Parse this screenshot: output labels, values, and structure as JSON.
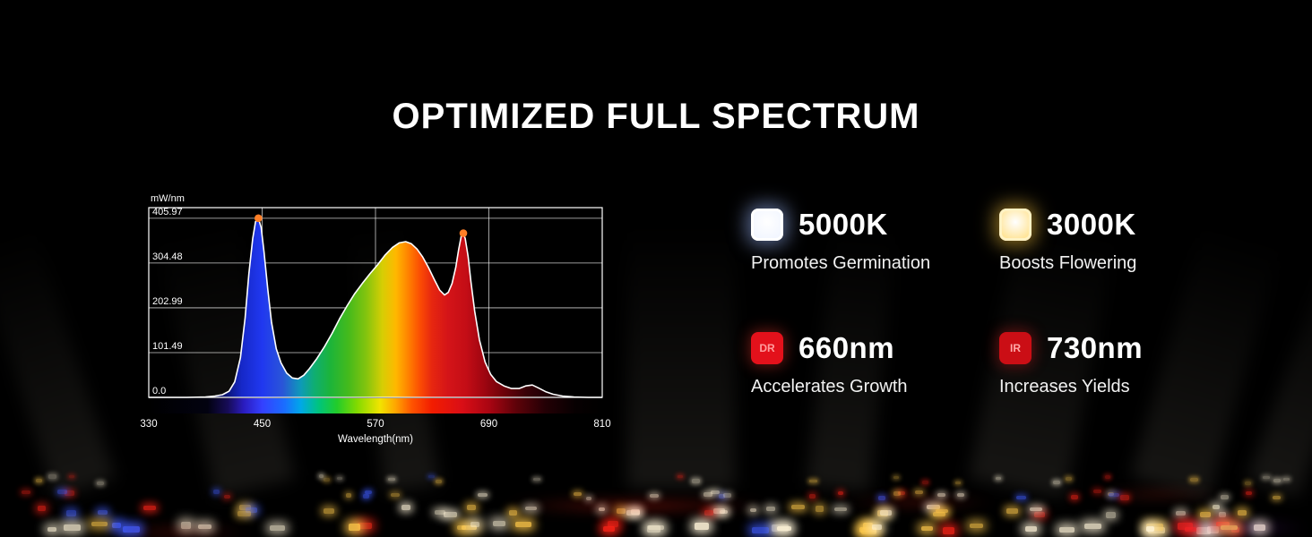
{
  "title": "OPTIMIZED FULL SPECTRUM",
  "chart_data": {
    "type": "area",
    "xlabel": "Wavelength(nm)",
    "ylabel": "mW/nm",
    "xlim": [
      330,
      810
    ],
    "ylim": [
      0,
      430
    ],
    "x_ticks": [
      {
        "label": "330",
        "v": 330
      },
      {
        "label": "450",
        "v": 450
      },
      {
        "label": "570",
        "v": 570
      },
      {
        "label": "690",
        "v": 690
      },
      {
        "label": "810",
        "v": 810
      }
    ],
    "y_ticks": [
      {
        "label": "0.0",
        "v": 0
      },
      {
        "label": "101.49",
        "v": 101.49
      },
      {
        "label": "202.99",
        "v": 202.99
      },
      {
        "label": "304.48",
        "v": 304.48
      },
      {
        "label": "405.97",
        "v": 405.97
      }
    ],
    "x": [
      330,
      370,
      390,
      400,
      408,
      415,
      421,
      427,
      432,
      436,
      440,
      443,
      446,
      449,
      452,
      456,
      460,
      465,
      470,
      476,
      482,
      488,
      494,
      500,
      508,
      516,
      524,
      532,
      540,
      548,
      556,
      564,
      572,
      580,
      588,
      595,
      602,
      608,
      614,
      620,
      626,
      632,
      638,
      643,
      647,
      651,
      655,
      658,
      661,
      663,
      665,
      668,
      671,
      675,
      680,
      686,
      692,
      698,
      706,
      714,
      722,
      729,
      736,
      742,
      750,
      758,
      768,
      780,
      795,
      810
    ],
    "y": [
      0,
      0,
      1,
      3,
      6,
      14,
      35,
      90,
      180,
      280,
      360,
      398,
      406,
      385,
      330,
      245,
      170,
      110,
      78,
      55,
      44,
      42,
      50,
      65,
      88,
      115,
      145,
      178,
      208,
      235,
      258,
      280,
      300,
      322,
      340,
      350,
      353,
      348,
      336,
      318,
      295,
      268,
      243,
      232,
      238,
      258,
      295,
      335,
      368,
      372,
      360,
      320,
      262,
      195,
      130,
      80,
      52,
      36,
      26,
      20,
      20,
      26,
      28,
      22,
      13,
      7,
      3,
      1,
      0,
      0
    ],
    "peaks": [
      {
        "x": 446,
        "y": 406
      },
      {
        "x": 663,
        "y": 372
      }
    ],
    "peak_marker_color": "#ff7f27",
    "line_color": "#ffffff",
    "fill_gradient": [
      {
        "o": 0.0,
        "c": "#030318"
      },
      {
        "o": 0.17,
        "c": "#0b1470"
      },
      {
        "o": 0.205,
        "c": "#1628c8"
      },
      {
        "o": 0.25,
        "c": "#2038f0"
      },
      {
        "o": 0.295,
        "c": "#2a55d8"
      },
      {
        "o": 0.335,
        "c": "#0e9ab8"
      },
      {
        "o": 0.365,
        "c": "#0fae72"
      },
      {
        "o": 0.4,
        "c": "#1cb43a"
      },
      {
        "o": 0.44,
        "c": "#44ba1c"
      },
      {
        "o": 0.48,
        "c": "#84c40e"
      },
      {
        "o": 0.515,
        "c": "#d6ce04"
      },
      {
        "o": 0.545,
        "c": "#ffb800"
      },
      {
        "o": 0.575,
        "c": "#ff7c00"
      },
      {
        "o": 0.6,
        "c": "#fa4a04"
      },
      {
        "o": 0.625,
        "c": "#e62610"
      },
      {
        "o": 0.66,
        "c": "#d41418"
      },
      {
        "o": 0.7,
        "c": "#c40d16"
      },
      {
        "o": 0.74,
        "c": "#9e0510"
      },
      {
        "o": 0.785,
        "c": "#6a020a"
      },
      {
        "o": 0.835,
        "c": "#360107"
      },
      {
        "o": 0.9,
        "c": "#120003"
      },
      {
        "o": 1.0,
        "c": "#000000"
      }
    ],
    "colorbar_gradient": [
      {
        "o": 0,
        "c": "#000000"
      },
      {
        "o": 0.13,
        "c": "#020210"
      },
      {
        "o": 0.175,
        "c": "#170c58"
      },
      {
        "o": 0.21,
        "c": "#2a1cc0"
      },
      {
        "o": 0.25,
        "c": "#3440ff"
      },
      {
        "o": 0.3,
        "c": "#1a6eff"
      },
      {
        "o": 0.335,
        "c": "#00a8e8"
      },
      {
        "o": 0.375,
        "c": "#00c47c"
      },
      {
        "o": 0.415,
        "c": "#22cc2a"
      },
      {
        "o": 0.46,
        "c": "#84da00"
      },
      {
        "o": 0.51,
        "c": "#f2e400"
      },
      {
        "o": 0.545,
        "c": "#ffa400"
      },
      {
        "o": 0.58,
        "c": "#ff5400"
      },
      {
        "o": 0.625,
        "c": "#f21c00"
      },
      {
        "o": 0.69,
        "c": "#da0e16"
      },
      {
        "o": 0.75,
        "c": "#aa0512"
      },
      {
        "o": 0.81,
        "c": "#5e0209"
      },
      {
        "o": 0.875,
        "c": "#230005"
      },
      {
        "o": 0.94,
        "c": "#070001"
      },
      {
        "o": 1,
        "c": "#000000"
      }
    ]
  },
  "features": [
    {
      "value": "5000K",
      "label": "Promotes Germination",
      "icon_text": "",
      "bg": "#f2f6ff",
      "ring": "#ffffff",
      "glow": "#9db9ff",
      "text_color": ""
    },
    {
      "value": "3000K",
      "label": "Boosts Flowering",
      "icon_text": "",
      "bg": "#ffe59a",
      "ring": "#fff2c4",
      "glow": "#ffc83d",
      "text_color": ""
    },
    {
      "value": "660nm",
      "label": "Accelerates Growth",
      "icon_text": "DR",
      "bg": "#e3111b",
      "ring": "",
      "glow": "#ff3b30",
      "text_color": "#ff9d9d"
    },
    {
      "value": "730nm",
      "label": "Increases Yields",
      "icon_text": "IR",
      "bg": "#cb0e15",
      "ring": "",
      "glow": "#e82020",
      "text_color": "#ffa8a8"
    }
  ],
  "decor": {
    "palette": {
      "white": "#fff4d8",
      "yellow": "#ffc94a",
      "red": "#ff2418",
      "blue": "#3f5cff"
    },
    "beam_glow": "rgba(255,244,220,0.09)"
  }
}
